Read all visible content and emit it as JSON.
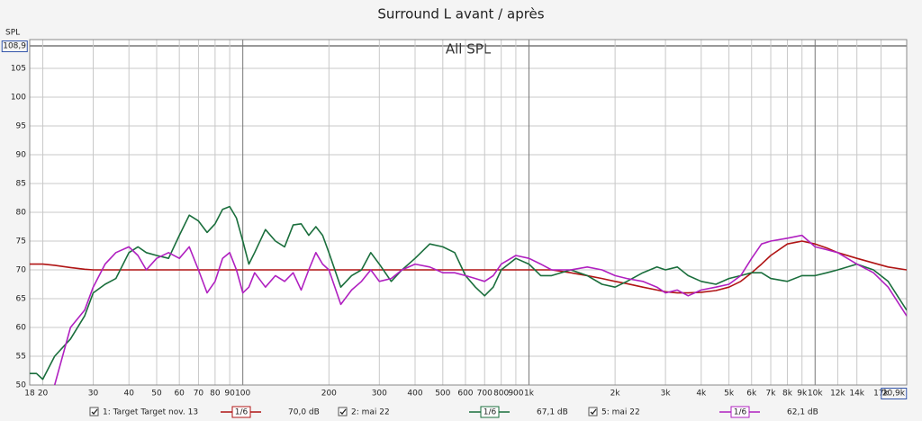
{
  "chart_data": {
    "type": "line",
    "title": "Surround L avant / après",
    "annotation": "All SPL",
    "y_label": "SPL",
    "log_x": true,
    "grid": true,
    "xlim": [
      18,
      20900
    ],
    "ylim": [
      50,
      108.9
    ],
    "yticks": [
      50,
      55,
      60,
      65,
      70,
      75,
      80,
      85,
      90,
      95,
      100,
      105,
      {
        "value": 108.9,
        "label": "108,9"
      }
    ],
    "xticks": [
      18,
      20,
      30,
      40,
      50,
      60,
      70,
      80,
      90,
      100,
      200,
      300,
      400,
      500,
      600,
      700,
      800,
      900,
      {
        "value": 1000,
        "label": "1k"
      },
      {
        "value": 2000,
        "label": "2k"
      },
      {
        "value": 3000,
        "label": "3k"
      },
      {
        "value": 4000,
        "label": "4k"
      },
      {
        "value": 5000,
        "label": "5k"
      },
      {
        "value": 6000,
        "label": "6k"
      },
      {
        "value": 7000,
        "label": "7k"
      },
      {
        "value": 8000,
        "label": "8k"
      },
      {
        "value": 9000,
        "label": "9k"
      },
      {
        "value": 10000,
        "label": "10k"
      },
      {
        "value": 12000,
        "label": "12k"
      },
      {
        "value": 14000,
        "label": "14k"
      },
      {
        "value": 17000,
        "label": "17k"
      },
      {
        "value": 20900,
        "label": "20,9k"
      }
    ],
    "x": [
      18,
      19,
      20,
      22,
      25,
      28,
      30,
      33,
      36,
      40,
      43,
      46,
      50,
      55,
      60,
      65,
      70,
      75,
      80,
      85,
      90,
      95,
      100,
      105,
      110,
      120,
      130,
      140,
      150,
      160,
      170,
      180,
      190,
      200,
      220,
      240,
      260,
      280,
      300,
      330,
      360,
      400,
      450,
      500,
      550,
      600,
      650,
      700,
      750,
      800,
      900,
      1000,
      1100,
      1200,
      1400,
      1600,
      1800,
      2000,
      2200,
      2500,
      2800,
      3000,
      3300,
      3600,
      4000,
      4500,
      5000,
      5500,
      6000,
      6500,
      7000,
      8000,
      9000,
      10000,
      11000,
      12000,
      14000,
      16000,
      18000,
      20900
    ],
    "series": [
      {
        "name": "1: Target Target nov. 13",
        "smoothing": "1/6",
        "level": "70,0 dB",
        "color": "#b01414",
        "values": [
          71,
          71,
          71,
          70.8,
          70.4,
          70.1,
          70,
          70,
          70,
          70,
          70,
          70,
          70,
          70,
          70,
          70,
          70,
          70,
          70,
          70,
          70,
          70,
          70,
          70,
          70,
          70,
          70,
          70,
          70,
          70,
          70,
          70,
          70,
          70,
          70,
          70,
          70,
          70,
          70,
          70,
          70,
          70,
          70,
          70,
          70,
          70,
          70,
          70,
          70,
          70,
          70,
          70,
          70,
          70,
          69.5,
          69,
          68.5,
          68,
          67.6,
          67,
          66.5,
          66.2,
          66,
          66,
          66.1,
          66.4,
          67,
          68,
          69.5,
          71,
          72.5,
          74.5,
          75,
          74.5,
          73.8,
          73,
          72,
          71.2,
          70.5,
          70
        ]
      },
      {
        "name": "2: mai 22",
        "smoothing": "1/6",
        "level": "67,1 dB",
        "color": "#1a6e3c",
        "values": [
          52,
          52,
          51,
          55,
          58,
          62,
          66,
          67.5,
          68.5,
          73,
          74,
          73,
          72.5,
          72,
          76,
          79.5,
          78.5,
          76.5,
          78,
          80.5,
          81,
          79,
          75,
          71,
          73,
          77,
          75,
          74,
          77.8,
          78,
          76,
          77.5,
          76,
          73,
          67,
          69,
          70,
          73,
          71,
          68,
          70,
          72,
          74.5,
          74,
          73,
          69,
          67,
          65.5,
          67,
          70,
          72,
          71,
          69,
          69,
          70,
          69,
          67.5,
          67,
          68,
          69.5,
          70.5,
          70,
          70.5,
          69,
          68,
          67.5,
          68.5,
          69,
          69.5,
          69.5,
          68.5,
          68,
          69,
          69,
          69.5,
          70,
          71,
          70,
          68,
          63
        ]
      },
      {
        "name": "5: mai 22",
        "smoothing": "1/6",
        "level": "62,1 dB",
        "color": "#b020c0",
        "values": [
          null,
          null,
          null,
          50,
          60,
          63,
          67,
          71,
          73,
          74,
          72.5,
          70,
          72,
          73,
          72,
          74,
          70,
          66,
          68,
          72,
          73,
          70,
          66,
          67,
          69.5,
          67,
          69,
          68,
          69.5,
          66.5,
          70,
          73,
          71,
          70,
          64,
          66.5,
          68,
          70,
          68,
          68.5,
          70,
          71,
          70.5,
          69.5,
          69.5,
          69,
          68.5,
          68,
          69,
          71,
          72.5,
          72,
          71,
          70,
          70,
          70.5,
          70,
          69,
          68.5,
          68,
          67,
          66,
          66.5,
          65.5,
          66.5,
          67,
          67.5,
          69,
          72,
          74.5,
          75,
          75.5,
          76,
          74,
          73.5,
          73,
          71,
          69.5,
          67,
          62
        ]
      }
    ]
  }
}
